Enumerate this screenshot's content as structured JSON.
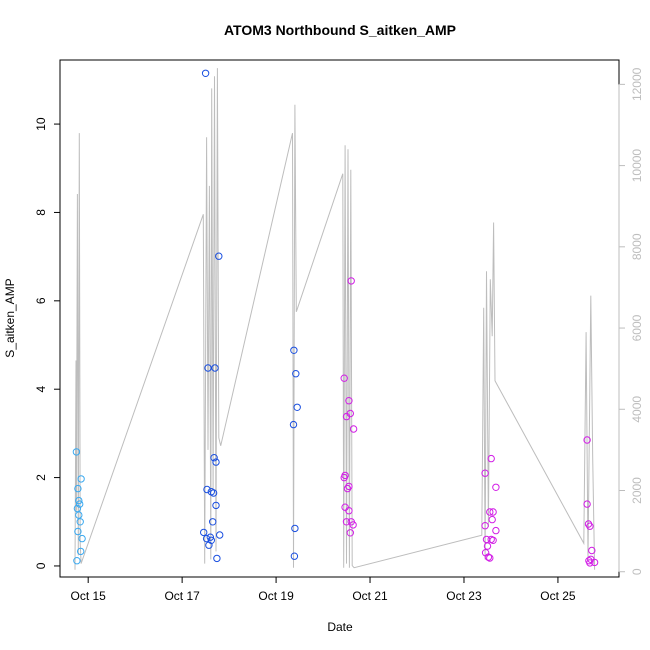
{
  "chart_data": {
    "type": "scatter",
    "title": "ATOM3 Northbound S_aitken_AMP",
    "xlabel": "Date",
    "ylabel": "S_aitken_AMP",
    "x_unit": "day of October",
    "xlim": [
      14.4,
      26.3
    ],
    "ylim": [
      -0.25,
      11.45
    ],
    "right_ylim": [
      -130,
      12600
    ],
    "x_ticks": [
      {
        "value": 15,
        "label": "Oct 15"
      },
      {
        "value": 17,
        "label": "Oct 17"
      },
      {
        "value": 19,
        "label": "Oct 19"
      },
      {
        "value": 21,
        "label": "Oct 21"
      },
      {
        "value": 23,
        "label": "Oct 23"
      },
      {
        "value": 25,
        "label": "Oct 25"
      }
    ],
    "y_ticks": [
      0,
      2,
      4,
      6,
      8,
      10
    ],
    "right_ticks": [
      0,
      2000,
      4000,
      6000,
      8000,
      10000,
      12000
    ],
    "colors": {
      "early": "#3aa9f0",
      "mid": "#1a4fe0",
      "late": "#d21ee6",
      "secondary": "#bdbdbd"
    },
    "series": [
      {
        "color_group": "early",
        "points": [
          [
            14.75,
            2.58
          ],
          [
            14.78,
            1.75
          ],
          [
            14.8,
            1.48
          ],
          [
            14.77,
            1.3
          ],
          [
            14.82,
            1.4
          ],
          [
            14.85,
            1.97
          ],
          [
            14.8,
            1.15
          ],
          [
            14.83,
            1.0
          ],
          [
            14.78,
            0.78
          ],
          [
            14.87,
            0.62
          ],
          [
            14.84,
            0.33
          ],
          [
            14.76,
            0.12
          ]
        ]
      },
      {
        "color_group": "mid",
        "points": [
          [
            17.5,
            11.15
          ],
          [
            17.55,
            4.48
          ],
          [
            17.7,
            4.48
          ],
          [
            17.78,
            7.01
          ],
          [
            17.68,
            2.45
          ],
          [
            17.72,
            2.35
          ],
          [
            17.53,
            1.73
          ],
          [
            17.62,
            1.68
          ],
          [
            17.67,
            1.65
          ],
          [
            17.72,
            1.37
          ],
          [
            17.65,
            1.0
          ],
          [
            17.46,
            0.76
          ],
          [
            17.52,
            0.62
          ],
          [
            17.6,
            0.65
          ],
          [
            17.62,
            0.58
          ],
          [
            17.57,
            0.47
          ],
          [
            17.8,
            0.7
          ],
          [
            17.74,
            0.17
          ],
          [
            19.38,
            4.88
          ],
          [
            19.42,
            4.35
          ],
          [
            19.45,
            3.59
          ],
          [
            19.37,
            3.2
          ],
          [
            19.4,
            0.85
          ],
          [
            19.39,
            0.22
          ]
        ]
      },
      {
        "color_group": "late",
        "points": [
          [
            20.45,
            4.25
          ],
          [
            20.5,
            3.38
          ],
          [
            20.55,
            3.74
          ],
          [
            20.58,
            3.45
          ],
          [
            20.65,
            3.1
          ],
          [
            20.47,
            2.05
          ],
          [
            20.45,
            2.0
          ],
          [
            20.52,
            1.75
          ],
          [
            20.55,
            1.8
          ],
          [
            20.47,
            1.33
          ],
          [
            20.55,
            1.25
          ],
          [
            20.5,
            1.0
          ],
          [
            20.6,
            1.0
          ],
          [
            20.64,
            0.93
          ],
          [
            20.58,
            0.75
          ],
          [
            20.6,
            6.45
          ],
          [
            23.45,
            2.1
          ],
          [
            23.58,
            2.43
          ],
          [
            23.68,
            1.78
          ],
          [
            23.62,
            1.22
          ],
          [
            23.55,
            1.22
          ],
          [
            23.6,
            1.05
          ],
          [
            23.45,
            0.91
          ],
          [
            23.68,
            0.8
          ],
          [
            23.48,
            0.6
          ],
          [
            23.58,
            0.6
          ],
          [
            23.62,
            0.58
          ],
          [
            23.5,
            0.45
          ],
          [
            23.46,
            0.3
          ],
          [
            23.52,
            0.2
          ],
          [
            23.55,
            0.18
          ],
          [
            25.62,
            2.85
          ],
          [
            25.62,
            1.4
          ],
          [
            25.65,
            0.95
          ],
          [
            25.68,
            0.9
          ],
          [
            25.72,
            0.35
          ],
          [
            25.7,
            0.15
          ],
          [
            25.66,
            0.12
          ],
          [
            25.78,
            0.08
          ],
          [
            25.68,
            0.07
          ]
        ]
      }
    ],
    "secondary_line": {
      "axis": "right",
      "color_group": "secondary",
      "points": [
        [
          14.72,
          50
        ],
        [
          14.74,
          5200
        ],
        [
          14.75,
          1500
        ],
        [
          14.77,
          9300
        ],
        [
          14.79,
          400
        ],
        [
          14.81,
          10800
        ],
        [
          14.83,
          700
        ],
        [
          14.85,
          200
        ],
        [
          17.45,
          8800
        ],
        [
          17.48,
          200
        ],
        [
          17.52,
          10700
        ],
        [
          17.55,
          3000
        ],
        [
          17.58,
          9500
        ],
        [
          17.61,
          300
        ],
        [
          17.63,
          11900
        ],
        [
          17.66,
          2000
        ],
        [
          17.69,
          12200
        ],
        [
          17.72,
          500
        ],
        [
          17.75,
          12400
        ],
        [
          17.78,
          3300
        ],
        [
          17.82,
          3100
        ],
        [
          19.35,
          10800
        ],
        [
          19.37,
          100
        ],
        [
          19.4,
          11500
        ],
        [
          19.43,
          6400
        ],
        [
          20.42,
          9800
        ],
        [
          20.44,
          100
        ],
        [
          20.47,
          10500
        ],
        [
          20.5,
          200
        ],
        [
          20.53,
          10400
        ],
        [
          20.56,
          100
        ],
        [
          20.59,
          9900
        ],
        [
          20.62,
          150
        ],
        [
          20.66,
          100
        ],
        [
          23.38,
          900
        ],
        [
          23.42,
          6500
        ],
        [
          23.45,
          300
        ],
        [
          23.48,
          7400
        ],
        [
          23.52,
          1100
        ],
        [
          23.56,
          7200
        ],
        [
          23.6,
          5800
        ],
        [
          23.63,
          8600
        ],
        [
          23.66,
          4700
        ],
        [
          25.55,
          700
        ],
        [
          25.6,
          5900
        ],
        [
          25.64,
          300
        ],
        [
          25.7,
          6800
        ],
        [
          25.74,
          2800
        ],
        [
          25.78,
          50
        ]
      ]
    }
  }
}
